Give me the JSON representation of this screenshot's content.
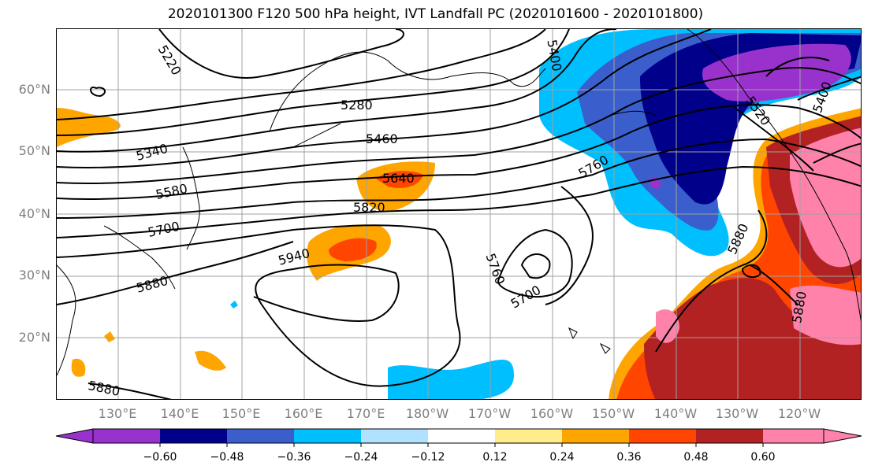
{
  "title": "2020101300 F120 500 hPa height, IVT Landfall PC (2020101600 - 2020101800)",
  "lat_labels": [
    "60°N",
    "50°N",
    "40°N",
    "30°N",
    "20°N"
  ],
  "lon_labels": [
    "130°E",
    "140°E",
    "150°E",
    "160°E",
    "170°E",
    "180°W",
    "170°W",
    "160°W",
    "150°W",
    "140°W",
    "130°W",
    "120°W"
  ],
  "contour_labels": [
    "5220",
    "5280",
    "5340",
    "5400",
    "5460",
    "5520",
    "5580",
    "5640",
    "5700",
    "5700",
    "5760",
    "5760",
    "5820",
    "5880",
    "5880",
    "5880",
    "5880",
    "5940",
    "5400"
  ],
  "colorbar": {
    "colors": [
      "#9932cc",
      "#00008b",
      "#3a5fcd",
      "#00bfff",
      "#b0e2ff",
      "#ffffff",
      "#ffec8b",
      "#ffa500",
      "#ff4500",
      "#b22222",
      "#ff82ab"
    ],
    "ticks": [
      "−0.60",
      "−0.48",
      "−0.36",
      "−0.24",
      "−0.12",
      "0.12",
      "0.24",
      "0.36",
      "0.48",
      "0.60"
    ]
  }
}
